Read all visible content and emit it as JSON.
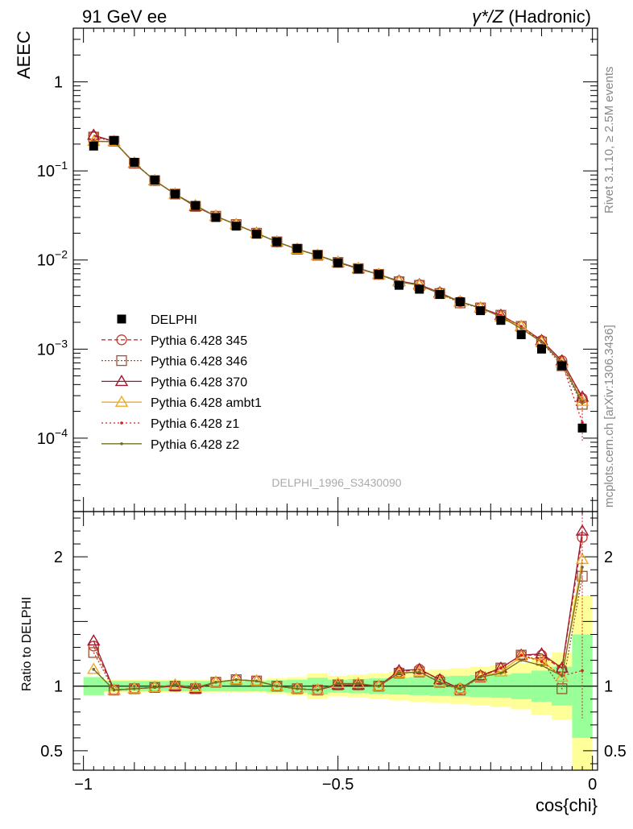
{
  "header": {
    "left": "91 GeV ee",
    "right_prefix": "γ*/Z",
    "right_suffix": " (Hadronic)"
  },
  "side_labels": {
    "rivet": "Rivet 3.1.10, ≥ 2.5M events",
    "mcplots": "mcplots.cern.ch [arXiv:1306.3436]"
  },
  "analysis_id": "DELPHI_1996_S3430090",
  "colors": {
    "DELPHI": "#000000",
    "Pythia 6.428 345": "#c0392b",
    "Pythia 6.428 346": "#a0522d",
    "Pythia 6.428 370": "#a01830",
    "Pythia 6.428 ambt1": "#f0a820",
    "Pythia 6.428 z1": "#d42020",
    "Pythia 6.428 z2": "#707020",
    "band_inner": "#99ff99",
    "band_outer": "#ffff99"
  },
  "chart_data": [
    {
      "type": "scatter",
      "panel": "main",
      "ylabel": "AEEC",
      "yscale": "log",
      "ylim": [
        1.5e-05,
        4
      ],
      "xlim": [
        -1.02,
        0.01
      ],
      "yticks": [
        {
          "value": 1,
          "label": "1"
        },
        {
          "value": 0.1,
          "label": "10",
          "exp": "−1"
        },
        {
          "value": 0.01,
          "label": "10",
          "exp": "−2"
        },
        {
          "value": 0.001,
          "label": "10",
          "exp": "−3"
        },
        {
          "value": 0.0001,
          "label": "10",
          "exp": "−4"
        }
      ],
      "x": [
        -0.98,
        -0.94,
        -0.9,
        -0.86,
        -0.82,
        -0.78,
        -0.74,
        -0.7,
        -0.66,
        -0.62,
        -0.58,
        -0.54,
        -0.5,
        -0.46,
        -0.42,
        -0.38,
        -0.34,
        -0.3,
        -0.26,
        -0.22,
        -0.18,
        -0.14,
        -0.1,
        -0.06,
        -0.02
      ],
      "series": [
        {
          "name": "DELPHI",
          "marker": "square",
          "values": [
            0.19,
            0.22,
            0.125,
            0.079,
            0.055,
            0.041,
            0.03,
            0.024,
            0.0195,
            0.016,
            0.0135,
            0.0115,
            0.0093,
            0.008,
            0.0069,
            0.0052,
            0.0047,
            0.0041,
            0.0034,
            0.0027,
            0.0021,
            0.00145,
            0.001,
            0.00065,
            0.00013
          ]
        },
        {
          "name": "Pythia 6.428 345",
          "marker": "circle",
          "line": "dashed",
          "values": [
            0.245,
            0.215,
            0.122,
            0.078,
            0.055,
            0.04,
            0.031,
            0.025,
            0.02,
            0.016,
            0.0132,
            0.0113,
            0.0094,
            0.008,
            0.0069,
            0.0058,
            0.0053,
            0.0043,
            0.0034,
            0.0029,
            0.0024,
            0.0018,
            0.00125,
            0.00074,
            0.00028
          ]
        },
        {
          "name": "Pythia 6.428 346",
          "marker": "open-square",
          "line": "dotted",
          "values": [
            0.24,
            0.215,
            0.122,
            0.078,
            0.055,
            0.04,
            0.031,
            0.025,
            0.02,
            0.016,
            0.0132,
            0.0113,
            0.0094,
            0.008,
            0.0069,
            0.0057,
            0.0052,
            0.0042,
            0.0033,
            0.0029,
            0.0024,
            0.0018,
            0.0012,
            0.00065,
            0.00024
          ]
        },
        {
          "name": "Pythia 6.428 370",
          "marker": "triangle",
          "line": "solid",
          "values": [
            0.252,
            0.214,
            0.122,
            0.078,
            0.055,
            0.04,
            0.031,
            0.025,
            0.02,
            0.016,
            0.0132,
            0.0113,
            0.0094,
            0.008,
            0.0069,
            0.0058,
            0.0053,
            0.0043,
            0.0034,
            0.0029,
            0.0024,
            0.0018,
            0.00125,
            0.00074,
            0.00029
          ]
        },
        {
          "name": "Pythia 6.428 ambt1",
          "marker": "triangle",
          "line": "solid",
          "values": [
            0.215,
            0.213,
            0.123,
            0.078,
            0.055,
            0.041,
            0.031,
            0.025,
            0.02,
            0.016,
            0.0132,
            0.0113,
            0.0095,
            0.0081,
            0.0069,
            0.0057,
            0.0052,
            0.0042,
            0.0034,
            0.0029,
            0.0023,
            0.0018,
            0.0012,
            0.0007,
            0.00026
          ]
        },
        {
          "name": "Pythia 6.428 z1",
          "marker": "dot",
          "line": "dotted",
          "values": [
            0.215,
            0.213,
            0.123,
            0.078,
            0.055,
            0.041,
            0.031,
            0.025,
            0.02,
            0.016,
            0.0132,
            0.0113,
            0.0095,
            0.0081,
            0.0069,
            0.0057,
            0.0052,
            0.0042,
            0.0034,
            0.0029,
            0.0024,
            0.0018,
            0.0012,
            0.0007,
            0.00015
          ]
        },
        {
          "name": "Pythia 6.428 z2",
          "marker": "dot",
          "line": "solid",
          "values": [
            0.215,
            0.213,
            0.123,
            0.078,
            0.055,
            0.041,
            0.031,
            0.025,
            0.02,
            0.016,
            0.0132,
            0.0113,
            0.0095,
            0.0081,
            0.0069,
            0.0057,
            0.0052,
            0.0042,
            0.0034,
            0.0029,
            0.0023,
            0.0017,
            0.0012,
            0.0007,
            0.00025
          ]
        }
      ],
      "legend": "left-center"
    },
    {
      "type": "scatter",
      "panel": "ratio",
      "ylabel": "Ratio to DELPHI",
      "xlabel": "cos{chi}",
      "ylim": [
        0.35,
        2.35
      ],
      "xlim": [
        -1.02,
        0.01
      ],
      "yticks": [
        {
          "value": 0.5,
          "label": "0.5"
        },
        {
          "value": 1,
          "label": "1"
        },
        {
          "value": 2,
          "label": "2"
        }
      ],
      "xticks": [
        {
          "value": -1,
          "label": "−1"
        },
        {
          "value": -0.5,
          "label": "−0.5"
        },
        {
          "value": 0,
          "label": "0"
        }
      ],
      "band_inner_halfwidth": [
        0.07,
        0.04,
        0.04,
        0.04,
        0.04,
        0.04,
        0.04,
        0.04,
        0.04,
        0.045,
        0.05,
        0.065,
        0.05,
        0.055,
        0.06,
        0.065,
        0.07,
        0.075,
        0.08,
        0.085,
        0.09,
        0.1,
        0.12,
        0.15,
        0.4
      ],
      "band_outer_halfwidth": [
        0.07,
        0.05,
        0.05,
        0.05,
        0.05,
        0.05,
        0.05,
        0.05,
        0.05,
        0.06,
        0.07,
        0.1,
        0.08,
        0.09,
        0.1,
        0.11,
        0.12,
        0.13,
        0.14,
        0.15,
        0.16,
        0.18,
        0.22,
        0.26,
        0.7
      ],
      "series": [
        {
          "name": "Pythia 6.428 345",
          "values": [
            1.31,
            0.97,
            0.98,
            0.99,
            1.0,
            0.98,
            1.03,
            1.05,
            1.04,
            1.0,
            0.98,
            0.97,
            1.01,
            1.01,
            1.0,
            1.11,
            1.13,
            1.05,
            0.98,
            1.08,
            1.14,
            1.24,
            1.24,
            1.13,
            2.15
          ]
        },
        {
          "name": "Pythia 6.428 346",
          "values": [
            1.26,
            0.97,
            0.98,
            0.99,
            1.0,
            0.98,
            1.03,
            1.05,
            1.04,
            1.0,
            0.98,
            0.97,
            1.01,
            1.01,
            1.0,
            1.1,
            1.11,
            1.03,
            0.97,
            1.07,
            1.14,
            1.24,
            1.2,
            0.98,
            1.85
          ]
        },
        {
          "name": "Pythia 6.428 370",
          "values": [
            1.35,
            0.97,
            0.98,
            0.99,
            1.0,
            0.98,
            1.03,
            1.05,
            1.04,
            1.0,
            0.98,
            0.97,
            1.01,
            1.01,
            1.0,
            1.12,
            1.13,
            1.05,
            0.98,
            1.08,
            1.14,
            1.24,
            1.25,
            1.14,
            2.2
          ]
        },
        {
          "name": "Pythia 6.428 ambt1",
          "values": [
            1.13,
            0.97,
            0.98,
            0.99,
            1.01,
            0.99,
            1.03,
            1.05,
            1.04,
            1.0,
            0.98,
            0.97,
            1.02,
            1.02,
            1.0,
            1.1,
            1.11,
            1.03,
            0.98,
            1.07,
            1.11,
            1.23,
            1.2,
            1.07,
            1.98
          ]
        },
        {
          "name": "Pythia 6.428 z1",
          "values": [
            1.13,
            0.97,
            0.98,
            0.99,
            1.01,
            0.99,
            1.03,
            1.05,
            1.04,
            1.0,
            0.98,
            0.97,
            1.02,
            1.02,
            1.0,
            1.1,
            1.11,
            1.03,
            0.98,
            1.07,
            1.14,
            1.24,
            1.19,
            1.08,
            1.12
          ]
        },
        {
          "name": "Pythia 6.428 z2",
          "values": [
            1.13,
            0.97,
            0.98,
            0.99,
            1.01,
            0.99,
            1.03,
            1.05,
            1.04,
            1.0,
            0.98,
            0.97,
            1.02,
            1.02,
            1.0,
            1.1,
            1.11,
            1.03,
            0.98,
            1.07,
            1.1,
            1.2,
            1.16,
            1.08,
            1.92
          ]
        }
      ]
    }
  ]
}
